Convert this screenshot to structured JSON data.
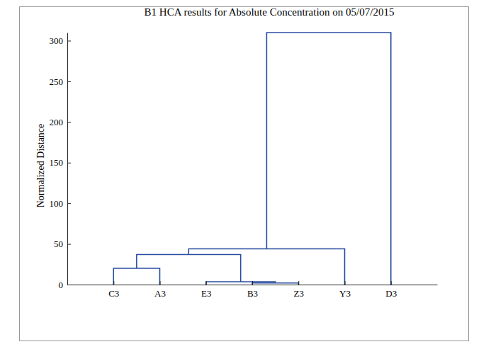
{
  "chart_data": {
    "type": "dendrogram",
    "title": "B1 HCA results for Absolute Concentration on 05/07/2015",
    "y_label": "Normalized Distance",
    "leaves": [
      "C3",
      "A3",
      "E3",
      "B3",
      "Z3",
      "Y3",
      "D3"
    ],
    "merges": [
      {
        "left": 3,
        "right": 4,
        "height": 2
      },
      {
        "left": 2,
        "right": 7,
        "height": 3.5
      },
      {
        "left": 0,
        "right": 1,
        "height": 20
      },
      {
        "left": 9,
        "right": 8,
        "height": 37
      },
      {
        "left": 10,
        "right": 5,
        "height": 44
      },
      {
        "left": 11,
        "right": 6,
        "height": 310
      }
    ],
    "color": "#2b4ea2",
    "ylim": [
      0,
      310
    ],
    "yticks": [
      0,
      50,
      100,
      150,
      200,
      250,
      300
    ]
  }
}
